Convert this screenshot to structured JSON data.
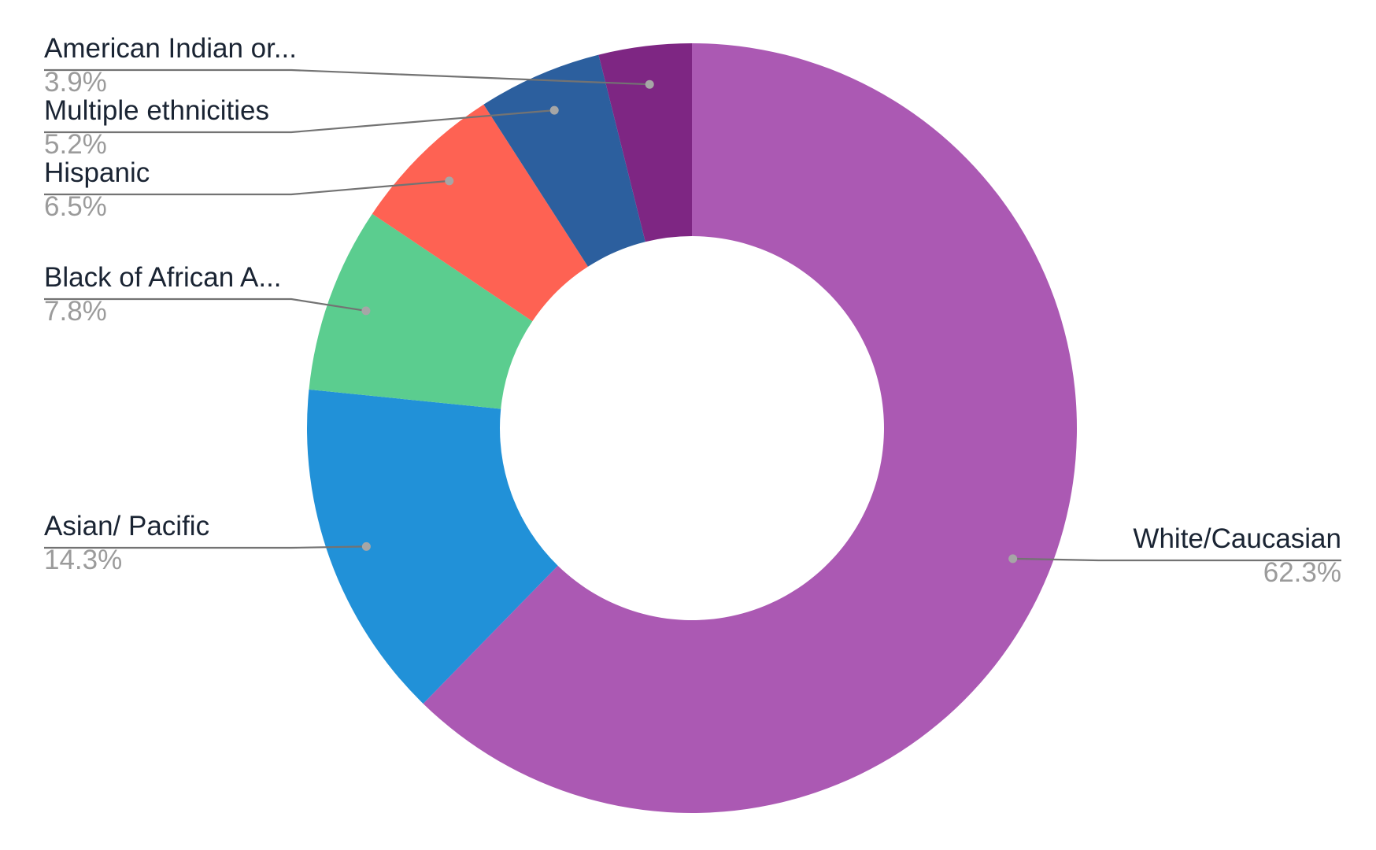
{
  "chart_data": {
    "type": "pie",
    "donut": true,
    "legend": "labels-with-leader-lines",
    "slices": [
      {
        "label": "White/Caucasian",
        "value": 62.3,
        "display": "62.3%",
        "color": "#ab59b3"
      },
      {
        "label": "Asian/ Pacific",
        "value": 14.3,
        "display": "14.3%",
        "color": "#2191d8"
      },
      {
        "label": "Black of African A...",
        "value": 7.8,
        "display": "7.8%",
        "color": "#5bcd8f"
      },
      {
        "label": "Hispanic",
        "value": 6.5,
        "display": "6.5%",
        "color": "#fe6253"
      },
      {
        "label": "Multiple ethnicities",
        "value": 5.2,
        "display": "5.2%",
        "color": "#2c5f9e"
      },
      {
        "label": "American Indian or...",
        "value": 3.9,
        "display": "3.9%",
        "color": "#7e2683"
      }
    ]
  }
}
